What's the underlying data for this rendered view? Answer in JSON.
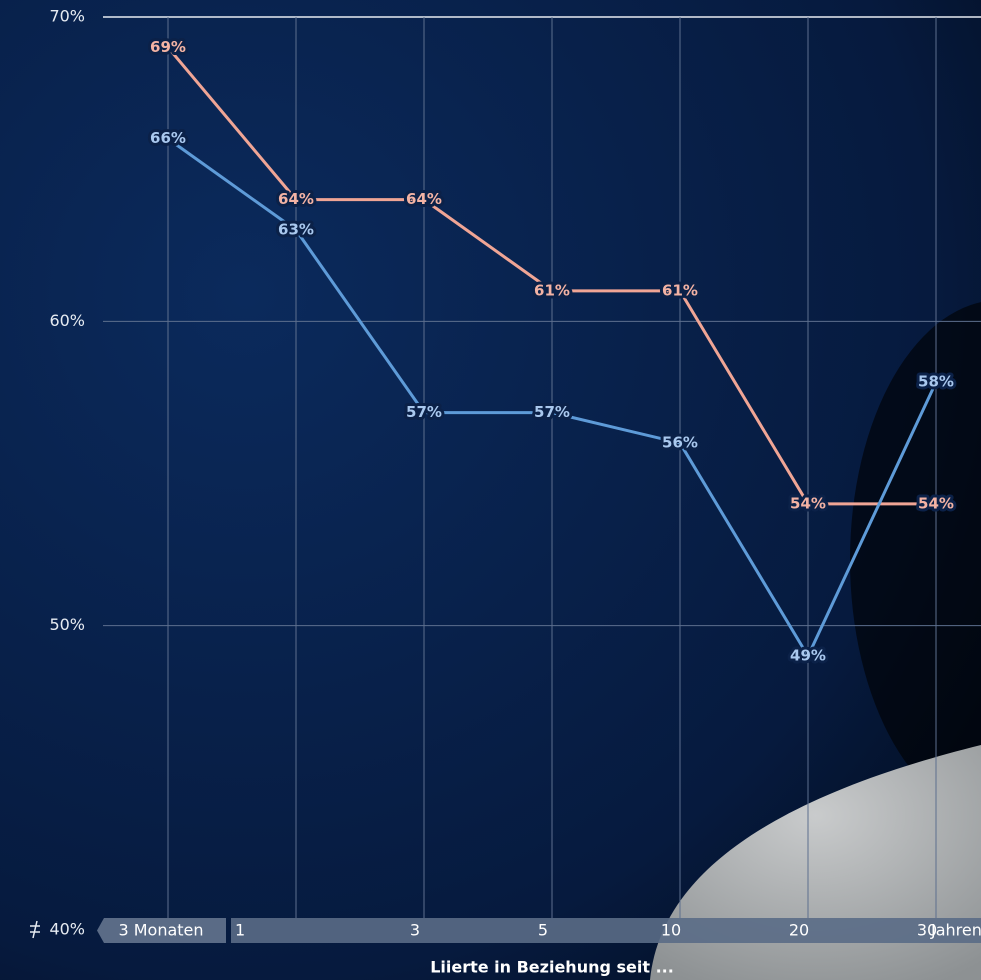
{
  "chart_data": {
    "type": "line",
    "x_label": "Liierte in Beziehung seit ...",
    "categories": [
      "3 Monaten",
      "1",
      "3",
      "5",
      "10",
      "20",
      "30"
    ],
    "x_unit": "Jahren",
    "series": [
      {
        "color": "#f0a595",
        "label_color": "#f3b3a4",
        "values": [
          69,
          64,
          64,
          61,
          61,
          54,
          54
        ],
        "value_labels": [
          "69%",
          "64%",
          "64%",
          "61%",
          "61%",
          "54%",
          "54%"
        ]
      },
      {
        "color": "#5e9bd8",
        "label_color": "#a9c8ee",
        "values": [
          66,
          63,
          57,
          57,
          56,
          49,
          58
        ],
        "value_labels": [
          "66%",
          "63%",
          "57%",
          "57%",
          "56%",
          "49%",
          "58%"
        ]
      }
    ],
    "ylim": [
      40,
      70
    ],
    "yticks": [
      {
        "value": 40,
        "label": "40%"
      },
      {
        "value": 50,
        "label": "50%"
      },
      {
        "value": 60,
        "label": "60%"
      },
      {
        "value": 70,
        "label": "70%"
      }
    ],
    "grid": true
  }
}
